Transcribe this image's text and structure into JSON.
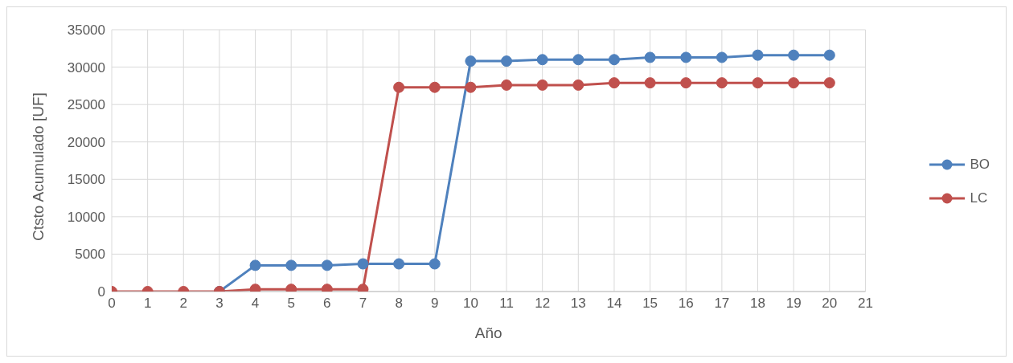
{
  "chart_data": {
    "type": "line",
    "xlabel": "Año",
    "ylabel": "Ctsto Acumulado [UF]",
    "x": [
      0,
      1,
      2,
      3,
      4,
      5,
      6,
      7,
      8,
      9,
      10,
      11,
      12,
      13,
      14,
      15,
      16,
      17,
      18,
      19,
      20
    ],
    "series": [
      {
        "name": "BO",
        "color": "#4f81bd",
        "values": [
          null,
          null,
          null,
          0,
          3500,
          3500,
          3500,
          3700,
          3700,
          3700,
          30800,
          30800,
          31000,
          31000,
          31000,
          31300,
          31300,
          31300,
          31600,
          31600,
          31600
        ]
      },
      {
        "name": "LC",
        "color": "#c0504d",
        "values": [
          0,
          0,
          0,
          0,
          300,
          300,
          300,
          300,
          27300,
          27300,
          27300,
          27600,
          27600,
          27600,
          27900,
          27900,
          27900,
          27900,
          27900,
          27900,
          27900
        ]
      }
    ],
    "xlim": [
      0,
      21
    ],
    "xticks": [
      0,
      1,
      2,
      3,
      4,
      5,
      6,
      7,
      8,
      9,
      10,
      11,
      12,
      13,
      14,
      15,
      16,
      17,
      18,
      19,
      20,
      21
    ],
    "ylim": [
      0,
      35000
    ],
    "yticks": [
      0,
      5000,
      10000,
      15000,
      20000,
      25000,
      30000,
      35000
    ],
    "grid": true,
    "legend": "right",
    "marker": "circle",
    "line_style": "solid"
  }
}
